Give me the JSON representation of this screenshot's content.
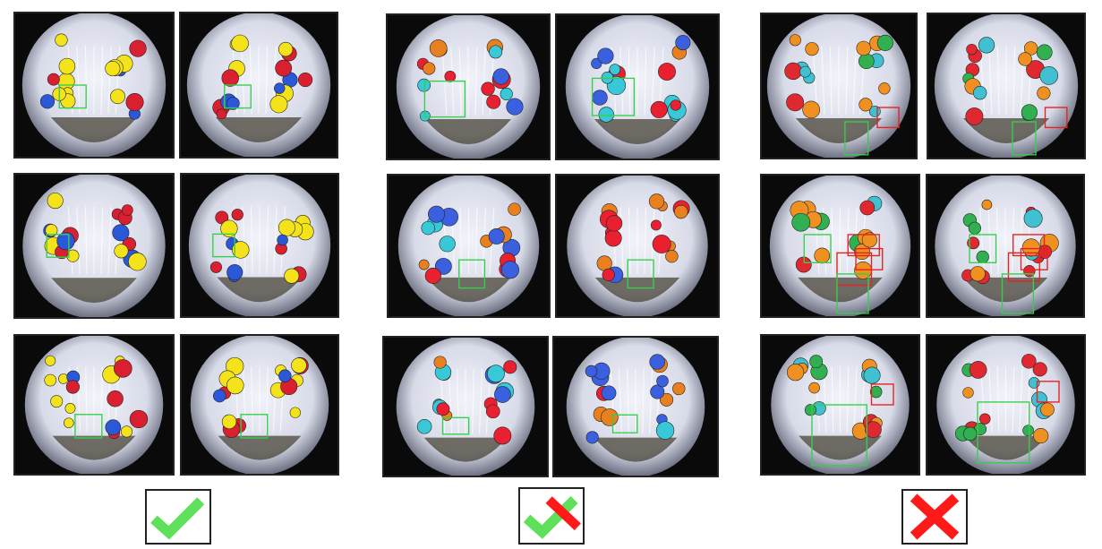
{
  "figure": {
    "columns": [
      {
        "verdict": "correct",
        "mark_icon": "green-check-icon"
      },
      {
        "verdict": "partially-correct",
        "mark_icon": "check-with-cross-icon"
      },
      {
        "verdict": "incorrect",
        "mark_icon": "red-cross-icon"
      }
    ],
    "colors": {
      "correct_box": "#35d04a",
      "wrong_box": "#e82020",
      "check_mark": "#5ee05a",
      "cross_mark": "#ff1a1a",
      "panel_bg": "#0a0a0a",
      "fridge_interior": "#d8dbe8"
    }
  }
}
